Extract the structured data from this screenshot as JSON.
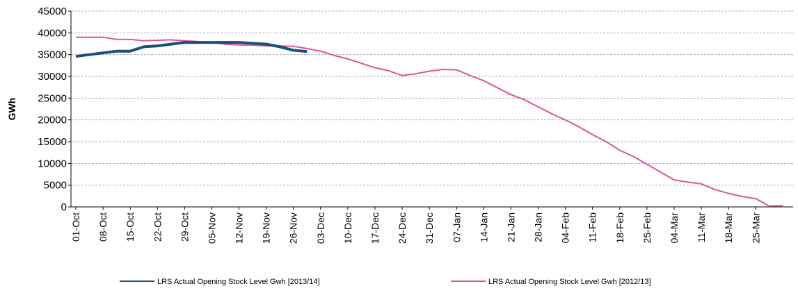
{
  "chart_data": {
    "type": "line",
    "y_label": "GWh",
    "categories": [
      "01-Oct",
      null,
      "08-Oct",
      null,
      "15-Oct",
      null,
      "22-Oct",
      null,
      "29-Oct",
      null,
      "05-Nov",
      null,
      "12-Nov",
      null,
      "19-Nov",
      null,
      "26-Nov",
      null,
      "03-Dec",
      null,
      "10-Dec",
      null,
      "17-Dec",
      null,
      "24-Dec",
      null,
      "31-Dec",
      null,
      "07-Jan",
      null,
      "14-Jan",
      null,
      "21-Jan",
      null,
      "28-Jan",
      null,
      "04-Feb",
      null,
      "11-Feb",
      null,
      "18-Feb",
      null,
      "25-Feb",
      null,
      "04-Mar",
      null,
      "11-Mar",
      null,
      "18-Mar",
      null,
      "25-Mar",
      null,
      null
    ],
    "series": [
      {
        "name": "LRS Actual Opening Stock Level Gwh [2013/14]",
        "color": "#1b4f7a",
        "width": 4,
        "values": [
          34600,
          35000,
          35400,
          35800,
          35800,
          36800,
          37000,
          37400,
          37800,
          37800,
          37800,
          37800,
          37800,
          37600,
          37400,
          36800,
          36000,
          35700,
          null,
          null,
          null,
          null,
          null,
          null,
          null,
          null,
          null,
          null,
          null,
          null,
          null,
          null,
          null,
          null,
          null,
          null,
          null,
          null,
          null,
          null,
          null,
          null,
          null,
          null,
          null,
          null,
          null,
          null,
          null,
          null,
          null,
          null,
          null
        ]
      },
      {
        "name": "LRS Actual Opening Stock Level Gwh [2012/13]",
        "color": "#e0529c",
        "width": 2,
        "values": [
          39000,
          39000,
          39000,
          38500,
          38500,
          38200,
          38300,
          38400,
          38200,
          38000,
          37800,
          37400,
          37200,
          37200,
          37000,
          37000,
          36900,
          36400,
          35800,
          34800,
          34000,
          33000,
          32000,
          31300,
          30200,
          30600,
          31200,
          31600,
          31500,
          30200,
          29000,
          27400,
          25800,
          24600,
          23000,
          21400,
          20000,
          18400,
          16600,
          15000,
          13000,
          11600,
          9800,
          8000,
          6200,
          5700,
          5300,
          4000,
          3100,
          2400,
          1900,
          200,
          300
        ]
      }
    ],
    "ylim": [
      0,
      45000
    ],
    "yticks": [
      0,
      5000,
      10000,
      15000,
      20000,
      25000,
      30000,
      35000,
      40000,
      45000
    ],
    "grid": true
  }
}
